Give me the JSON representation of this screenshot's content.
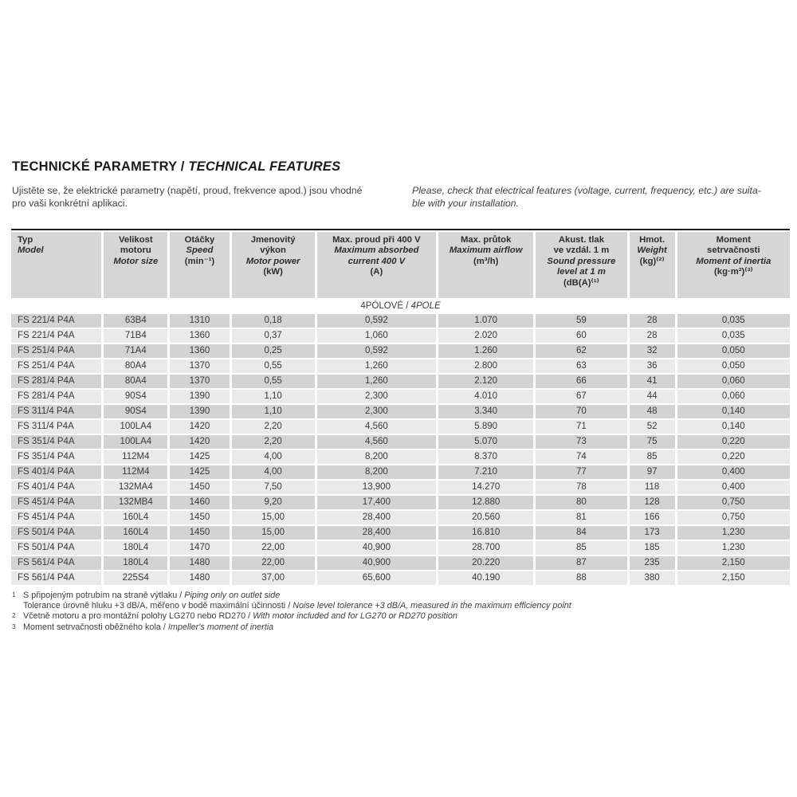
{
  "page": {
    "title": {
      "cs": "TECHNICKÉ PARAMETRY / ",
      "en": "TECHNICAL FEATURES"
    },
    "intro": {
      "cs": "Ujistěte se, že elektrické parametry (napětí, proud, frekvence apod.) jsou vhodné\npro vaši konkrétní aplikaci.",
      "en": "Please, check that electrical features (voltage, current, frequency, etc.) are suita-\nble with your installation."
    }
  },
  "table": {
    "section": {
      "cs": "4PÓLOVÉ / ",
      "en": "4POLE"
    },
    "columns": [
      {
        "key": "typ",
        "cs": [
          "Typ"
        ],
        "en": [
          "Model"
        ],
        "unit": "",
        "align": "left"
      },
      {
        "key": "velikost-motoru",
        "cs": [
          "Velikost",
          "motoru"
        ],
        "en": [
          "Motor size"
        ],
        "unit": ""
      },
      {
        "key": "otacky",
        "cs": [
          "Otáčky"
        ],
        "en": [
          "Speed"
        ],
        "unit": "(min⁻¹)"
      },
      {
        "key": "jmenovity-vykon",
        "cs": [
          "Jmenovitý",
          "výkon"
        ],
        "en": [
          "Motor power"
        ],
        "unit": "(kW)"
      },
      {
        "key": "max-proud",
        "cs": [
          "Max. proud při 400 V"
        ],
        "en": [
          "Maximum absorbed",
          "current 400 V"
        ],
        "unit": "(A)"
      },
      {
        "key": "max-prutok",
        "cs": [
          "Max. průtok"
        ],
        "en": [
          "Maximum airflow"
        ],
        "unit": "(m³/h)"
      },
      {
        "key": "akust-tlak",
        "cs": [
          "Akust. tlak",
          "ve vzdál. 1 m"
        ],
        "en": [
          "Sound pressure",
          "level at 1 m"
        ],
        "unit": "(dB(A)⁽¹⁾"
      },
      {
        "key": "hmot",
        "cs": [
          "Hmot."
        ],
        "en": [
          "Weight"
        ],
        "unit": "(kg)⁽²⁾"
      },
      {
        "key": "moment-setrvacnosti",
        "cs": [
          "Moment",
          "setrvačnosti"
        ],
        "en": [
          "Moment of inertia"
        ],
        "unit": "(kg·m²)⁽³⁾"
      }
    ],
    "rows": [
      [
        "FS 221/4 P4A",
        "63B4",
        "1310",
        "0,18",
        "0,592",
        "1.070",
        "59",
        "28",
        "0,035"
      ],
      [
        "FS 221/4 P4A",
        "71B4",
        "1360",
        "0,37",
        "1,060",
        "2.020",
        "60",
        "28",
        "0,035"
      ],
      [
        "FS 251/4 P4A",
        "71A4",
        "1360",
        "0,25",
        "0,592",
        "1.260",
        "62",
        "32",
        "0,050"
      ],
      [
        "FS 251/4 P4A",
        "80A4",
        "1370",
        "0,55",
        "1,260",
        "2.800",
        "63",
        "36",
        "0,050"
      ],
      [
        "FS 281/4 P4A",
        "80A4",
        "1370",
        "0,55",
        "1,260",
        "2.120",
        "66",
        "41",
        "0,060"
      ],
      [
        "FS 281/4 P4A",
        "90S4",
        "1390",
        "1,10",
        "2,300",
        "4.010",
        "67",
        "44",
        "0,060"
      ],
      [
        "FS 311/4 P4A",
        "90S4",
        "1390",
        "1,10",
        "2,300",
        "3.340",
        "70",
        "48",
        "0,140"
      ],
      [
        "FS 311/4 P4A",
        "100LA4",
        "1420",
        "2,20",
        "4,560",
        "5.890",
        "71",
        "52",
        "0,140"
      ],
      [
        "FS 351/4 P4A",
        "100LA4",
        "1420",
        "2,20",
        "4,560",
        "5.070",
        "73",
        "75",
        "0,220"
      ],
      [
        "FS 351/4 P4A",
        "112M4",
        "1425",
        "4,00",
        "8,200",
        "8.370",
        "74",
        "85",
        "0,220"
      ],
      [
        "FS 401/4 P4A",
        "112M4",
        "1425",
        "4,00",
        "8,200",
        "7.210",
        "77",
        "97",
        "0,400"
      ],
      [
        "FS 401/4 P4A",
        "132MA4",
        "1450",
        "7,50",
        "13,900",
        "14.270",
        "78",
        "118",
        "0,400"
      ],
      [
        "FS 451/4 P4A",
        "132MB4",
        "1460",
        "9,20",
        "17,400",
        "12.880",
        "80",
        "128",
        "0,750"
      ],
      [
        "FS 451/4 P4A",
        "160L4",
        "1450",
        "15,00",
        "28,400",
        "20.560",
        "81",
        "166",
        "0,750"
      ],
      [
        "FS 501/4 P4A",
        "160L4",
        "1450",
        "15,00",
        "28,400",
        "16.810",
        "84",
        "173",
        "1,230"
      ],
      [
        "FS 501/4 P4A",
        "180L4",
        "1470",
        "22,00",
        "40,900",
        "28.700",
        "85",
        "185",
        "1,230"
      ],
      [
        "FS 561/4 P4A",
        "180L4",
        "1480",
        "22,00",
        "40,900",
        "20.220",
        "87",
        "235",
        "2,150"
      ],
      [
        "FS 561/4 P4A",
        "225S4",
        "1480",
        "37,00",
        "65,600",
        "40.190",
        "88",
        "380",
        "2,150"
      ]
    ]
  },
  "footnotes": [
    {
      "marker": "1",
      "cs": "S připojeným potrubím na straně výtlaku",
      "en": "Piping only on outlet side"
    },
    {
      "marker": "",
      "cs": "Tolerance úrovně hluku +3 dB/A, měřeno v bodě maximální účinnosti",
      "en": "Noise level tolerance +3 dB/A, measured in the maximum efficiency point"
    },
    {
      "marker": "2",
      "cs": "Včetně motoru a pro montážní polohy LG270 nebo RD270",
      "en": "With motor included and for LG270 or RD270 position"
    },
    {
      "marker": "3",
      "cs": "Moment setrvačnosti oběžného kola",
      "en": "Impeller's moment of inertia"
    }
  ],
  "colors": {
    "rule": "#1c1c1c",
    "header_bg": "#d6d6d6",
    "row_dark": "#d3d3d3",
    "row_light": "#eaeaea",
    "text": "#3a3a3a"
  }
}
